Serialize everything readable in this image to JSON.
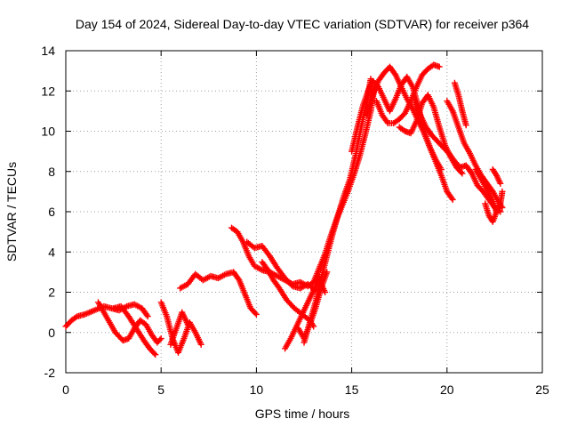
{
  "chart_data": {
    "type": "scatter",
    "title": "Day 154 of 2024, Sidereal Day-to-day VTEC variation (SDTVAR) for receiver p364",
    "xlabel": "GPS time / hours",
    "ylabel": "SDTVAR / TECUs",
    "xlim": [
      0,
      25
    ],
    "ylim": [
      -2,
      14
    ],
    "xticks": [
      0,
      5,
      10,
      15,
      20,
      25
    ],
    "yticks": [
      -2,
      0,
      2,
      4,
      6,
      8,
      10,
      12,
      14
    ],
    "xtick_labels": [
      "0",
      "5",
      "10",
      "15",
      "20",
      "25"
    ],
    "ytick_labels": [
      "-2",
      "0",
      "2",
      "4",
      "6",
      "8",
      "10",
      "12",
      "14"
    ],
    "grid": true,
    "legend": "none",
    "marker": "plus",
    "color": "#ff0000",
    "series": [
      {
        "x": [
          0.0,
          0.3,
          0.6,
          1.0,
          1.5,
          2.0,
          2.4,
          2.8,
          3.2,
          3.6,
          4.0,
          4.3
        ],
        "y": [
          0.3,
          0.6,
          0.8,
          0.9,
          1.1,
          1.3,
          1.2,
          1.1,
          1.3,
          1.4,
          1.2,
          0.8
        ]
      },
      {
        "x": [
          1.7,
          2.0,
          2.3,
          2.6,
          3.0,
          3.3,
          3.6,
          3.9,
          4.2,
          4.5,
          4.8,
          5.0
        ],
        "y": [
          1.5,
          1.0,
          0.5,
          0.0,
          -0.4,
          -0.3,
          0.2,
          0.6,
          0.4,
          -0.1,
          -0.5,
          -0.3
        ]
      },
      {
        "x": [
          2.5,
          2.9,
          3.3,
          3.7,
          4.1,
          4.4,
          4.7
        ],
        "y": [
          1.2,
          1.3,
          0.8,
          0.2,
          -0.4,
          -0.8,
          -1.1
        ]
      },
      {
        "x": [
          5.0,
          5.3,
          5.6,
          5.9,
          6.2,
          6.5,
          6.8,
          7.1
        ],
        "y": [
          1.5,
          0.8,
          -0.3,
          -1.0,
          -0.3,
          0.5,
          0.0,
          -0.6
        ]
      },
      {
        "x": [
          5.5,
          5.8,
          6.1,
          6.4
        ],
        "y": [
          -0.6,
          0.2,
          1.0,
          0.4
        ]
      },
      {
        "x": [
          6.0,
          6.4,
          6.8,
          7.2,
          7.6,
          8.0,
          8.4,
          8.8,
          9.1,
          9.4,
          9.7,
          10.0
        ],
        "y": [
          2.2,
          2.4,
          2.9,
          2.6,
          2.8,
          2.7,
          2.9,
          3.0,
          2.6,
          1.9,
          1.2,
          0.9
        ]
      },
      {
        "x": [
          8.7,
          9.0,
          9.3,
          9.6,
          9.9,
          10.3,
          10.7,
          11.1,
          11.5,
          11.9,
          12.3,
          12.7,
          13.0,
          13.3
        ],
        "y": [
          5.2,
          5.0,
          4.5,
          3.8,
          3.3,
          3.1,
          3.0,
          2.8,
          2.6,
          2.4,
          2.5,
          2.3,
          2.5,
          2.8
        ]
      },
      {
        "x": [
          9.5,
          9.9,
          10.3,
          10.7,
          11.1,
          11.5,
          11.9,
          12.3,
          12.7,
          13.1
        ],
        "y": [
          4.5,
          4.2,
          4.3,
          3.8,
          3.2,
          2.7,
          2.3,
          2.2,
          2.4,
          2.1
        ]
      },
      {
        "x": [
          10.3,
          10.6,
          10.9,
          11.2,
          11.6,
          12.0,
          12.4,
          12.8,
          13.0
        ],
        "y": [
          3.5,
          3.1,
          2.6,
          2.2,
          1.6,
          1.2,
          0.9,
          0.6,
          0.3
        ]
      },
      {
        "x": [
          11.5,
          11.8,
          12.1,
          12.4,
          12.7,
          13.0,
          13.3,
          13.6
        ],
        "y": [
          -0.8,
          -0.3,
          0.3,
          0.9,
          1.5,
          2.1,
          2.6,
          2.0
        ]
      },
      {
        "x": [
          12.2,
          12.5,
          12.8,
          13.1,
          13.4,
          13.7
        ],
        "y": [
          0.2,
          -0.3,
          0.4,
          1.2,
          2.2,
          3.0
        ]
      },
      {
        "x": [
          12.5,
          12.8,
          13.1,
          13.4,
          13.7,
          14.0,
          14.3,
          14.6,
          14.9,
          15.2,
          15.5,
          15.8,
          16.0
        ],
        "y": [
          -0.5,
          0.5,
          1.5,
          2.7,
          3.8,
          4.9,
          5.9,
          6.8,
          7.6,
          8.8,
          10.2,
          11.5,
          12.6
        ]
      },
      {
        "x": [
          13.0,
          13.3,
          13.6,
          13.9,
          14.2,
          14.5,
          14.8,
          15.1,
          15.4,
          15.7,
          16.0,
          16.2
        ],
        "y": [
          2.5,
          3.2,
          3.9,
          4.8,
          5.6,
          6.3,
          7.0,
          7.8,
          8.7,
          9.8,
          11.0,
          12.2
        ]
      },
      {
        "x": [
          15.0,
          15.3,
          15.6,
          15.9,
          16.1,
          16.4,
          16.7,
          17.0,
          17.3,
          17.6,
          17.9,
          18.2,
          18.5,
          18.8,
          19.1,
          19.4,
          19.7
        ],
        "y": [
          9.0,
          10.2,
          11.3,
          12.1,
          12.5,
          12.2,
          11.6,
          11.0,
          11.6,
          12.3,
          12.7,
          12.2,
          11.2,
          10.0,
          9.2,
          8.6,
          8.1
        ]
      },
      {
        "x": [
          15.8,
          16.1,
          16.4,
          16.7,
          17.0,
          17.3,
          17.6,
          17.9,
          18.2,
          18.5,
          18.8,
          19.1,
          19.4,
          19.7,
          20.0,
          20.3
        ],
        "y": [
          10.8,
          11.8,
          12.5,
          12.9,
          13.2,
          12.8,
          12.2,
          11.6,
          11.1,
          10.5,
          9.9,
          9.2,
          8.5,
          7.8,
          7.0,
          6.6
        ]
      },
      {
        "x": [
          16.3,
          16.6,
          16.9,
          17.2,
          17.5,
          17.8,
          18.1,
          18.4,
          18.7,
          19.0,
          19.3,
          19.6
        ],
        "y": [
          11.5,
          10.8,
          10.4,
          10.4,
          10.6,
          10.9,
          11.5,
          12.2,
          12.8,
          13.1,
          13.3,
          13.2
        ]
      },
      {
        "x": [
          17.5,
          17.8,
          18.1,
          18.4,
          18.7,
          19.0,
          19.3,
          19.6,
          19.9,
          20.2,
          20.5,
          20.8
        ],
        "y": [
          10.2,
          10.0,
          9.9,
          10.5,
          11.4,
          11.8,
          11.2,
          10.2,
          9.3,
          8.7,
          8.2,
          7.9
        ]
      },
      {
        "x": [
          18.3,
          18.6,
          18.9,
          19.2,
          19.5,
          19.8,
          20.1,
          20.4,
          20.7,
          21.0,
          21.3,
          21.6,
          21.9,
          22.2,
          22.5,
          22.8
        ],
        "y": [
          11.5,
          10.8,
          10.2,
          9.8,
          9.5,
          9.2,
          8.9,
          8.5,
          8.2,
          8.3,
          7.9,
          7.3,
          7.0,
          6.6,
          6.2,
          6.0
        ]
      },
      {
        "x": [
          20.0,
          20.3,
          20.6,
          20.9,
          21.2,
          21.5,
          21.8,
          22.1,
          22.4,
          22.7,
          22.9
        ],
        "y": [
          11.5,
          11.0,
          10.2,
          9.4,
          8.9,
          8.3,
          7.8,
          7.4,
          7.0,
          6.5,
          6.2
        ]
      },
      {
        "x": [
          20.4,
          20.6,
          20.8,
          21.0
        ],
        "y": [
          12.4,
          11.8,
          11.0,
          10.3
        ]
      },
      {
        "x": [
          21.5,
          21.8,
          22.1,
          22.4,
          22.6,
          22.8,
          22.9
        ],
        "y": [
          8.1,
          7.6,
          7.1,
          6.5,
          6.0,
          6.4,
          7.0
        ]
      },
      {
        "x": [
          22.0,
          22.2,
          22.4,
          22.6
        ],
        "y": [
          6.4,
          5.8,
          5.5,
          6.0
        ]
      },
      {
        "x": [
          22.4,
          22.6,
          22.8
        ],
        "y": [
          8.1,
          7.8,
          7.4
        ]
      }
    ]
  }
}
